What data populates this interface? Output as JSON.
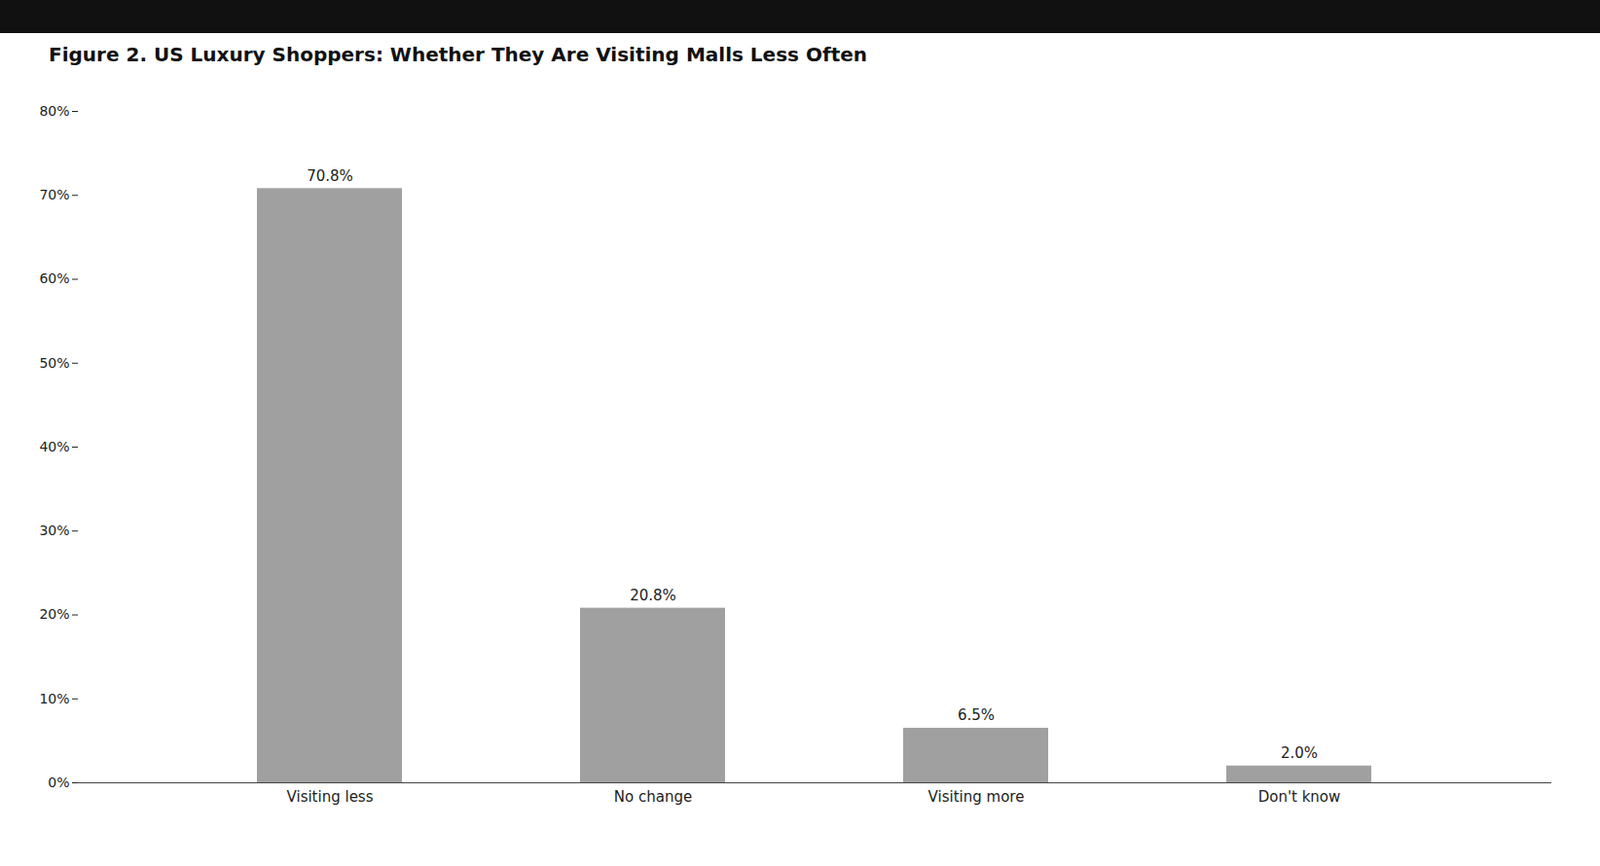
{
  "chart_data": {
    "type": "bar",
    "title": "Figure 2. US Luxury Shoppers: Whether They Are Visiting Malls Less Often",
    "categories": [
      "Visiting less",
      "No change",
      "Visiting more",
      "Don't know"
    ],
    "values": [
      70.8,
      20.8,
      6.5,
      2.0
    ],
    "value_labels": [
      "70.8%",
      "20.8%",
      "6.5%",
      "2.0%"
    ],
    "data_labels": true,
    "color": "#a0a0a0",
    "ylim": [
      0,
      80
    ],
    "yticks": [
      {
        "value": 0,
        "label": "0%"
      },
      {
        "value": 10,
        "label": "10%"
      },
      {
        "value": 20,
        "label": "20%"
      },
      {
        "value": 30,
        "label": "30%"
      },
      {
        "value": 40,
        "label": "40%"
      },
      {
        "value": 50,
        "label": "50%"
      },
      {
        "value": 60,
        "label": "60%"
      },
      {
        "value": 70,
        "label": "70%"
      },
      {
        "value": 80,
        "label": "80%"
      }
    ],
    "grid": false
  }
}
